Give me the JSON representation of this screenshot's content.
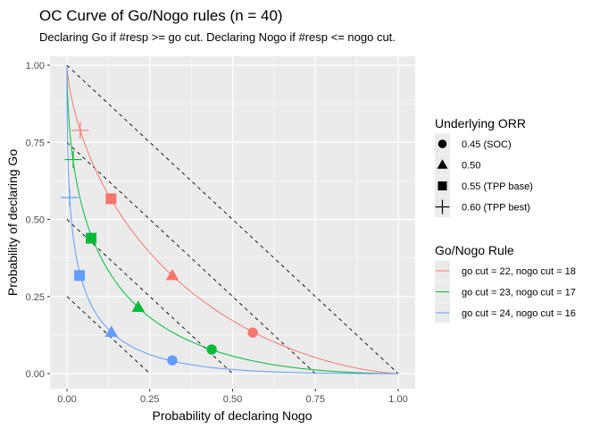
{
  "chart_data": {
    "type": "line",
    "title": "OC Curve of Go/Nogo rules (n = 40)",
    "subtitle": "Declaring Go if #resp >= go cut. Declaring Nogo if #resp <= nogo cut.",
    "xlabel": "Probability of declaring Nogo",
    "ylabel": "Probability of declaring Go",
    "xlim": [
      0,
      1
    ],
    "ylim": [
      0,
      1
    ],
    "n": 40,
    "grid": true,
    "x_ticks": [
      "0.00",
      "0.25",
      "0.50",
      "0.75",
      "1.00"
    ],
    "y_ticks": [
      "0.00",
      "0.25",
      "0.50",
      "0.75",
      "1.00"
    ],
    "x_tick_values": [
      0,
      0.25,
      0.5,
      0.75,
      1
    ],
    "y_tick_values": [
      0,
      0.25,
      0.5,
      0.75,
      1
    ],
    "reference_lines": [
      {
        "name": "ref-1.00",
        "from": [
          0,
          1.0
        ],
        "to": [
          1.0,
          0
        ]
      },
      {
        "name": "ref-0.75",
        "from": [
          0,
          0.75
        ],
        "to": [
          0.75,
          0
        ]
      },
      {
        "name": "ref-0.50",
        "from": [
          0,
          0.5
        ],
        "to": [
          0.5,
          0
        ]
      },
      {
        "name": "ref-0.25",
        "from": [
          0,
          0.25
        ],
        "to": [
          0.25,
          0
        ]
      }
    ],
    "shape_legend": {
      "title": "Underlying ORR",
      "entries": [
        {
          "label": "0.45 (SOC)",
          "shape": "circle",
          "orr": 0.45
        },
        {
          "label": "0.50",
          "shape": "triangle",
          "orr": 0.5
        },
        {
          "label": "0.55 (TPP base)",
          "shape": "square",
          "orr": 0.55
        },
        {
          "label": "0.60 (TPP best)",
          "shape": "plus",
          "orr": 0.6
        }
      ]
    },
    "color_legend": {
      "title": "Go/Nogo Rule",
      "placement": "right"
    },
    "series": [
      {
        "name": "go cut = 22, nogo cut = 18",
        "go_cut": 22,
        "nogo_cut": 18,
        "color": "#F8766D",
        "points": [
          {
            "orr": 0.45,
            "shape": "circle",
            "x": 0.561,
            "y": 0.133
          },
          {
            "orr": 0.5,
            "shape": "triangle",
            "x": 0.318,
            "y": 0.318
          },
          {
            "orr": 0.55,
            "shape": "square",
            "x": 0.133,
            "y": 0.567
          },
          {
            "orr": 0.6,
            "shape": "plus",
            "x": 0.04,
            "y": 0.789
          }
        ]
      },
      {
        "name": "go cut = 23, nogo cut = 17",
        "go_cut": 23,
        "nogo_cut": 17,
        "color": "#00BA38",
        "points": [
          {
            "orr": 0.45,
            "shape": "circle",
            "x": 0.437,
            "y": 0.078
          },
          {
            "orr": 0.5,
            "shape": "triangle",
            "x": 0.215,
            "y": 0.215
          },
          {
            "orr": 0.55,
            "shape": "square",
            "x": 0.073,
            "y": 0.439
          },
          {
            "orr": 0.6,
            "shape": "plus",
            "x": 0.019,
            "y": 0.694
          }
        ]
      },
      {
        "name": "go cut = 24, nogo cut = 16",
        "go_cut": 24,
        "nogo_cut": 16,
        "color": "#619CFF",
        "points": [
          {
            "orr": 0.45,
            "shape": "circle",
            "x": 0.318,
            "y": 0.043
          },
          {
            "orr": 0.5,
            "shape": "triangle",
            "x": 0.134,
            "y": 0.134
          },
          {
            "orr": 0.55,
            "shape": "square",
            "x": 0.038,
            "y": 0.318
          },
          {
            "orr": 0.6,
            "shape": "plus",
            "x": 0.008,
            "y": 0.571
          }
        ]
      }
    ]
  }
}
